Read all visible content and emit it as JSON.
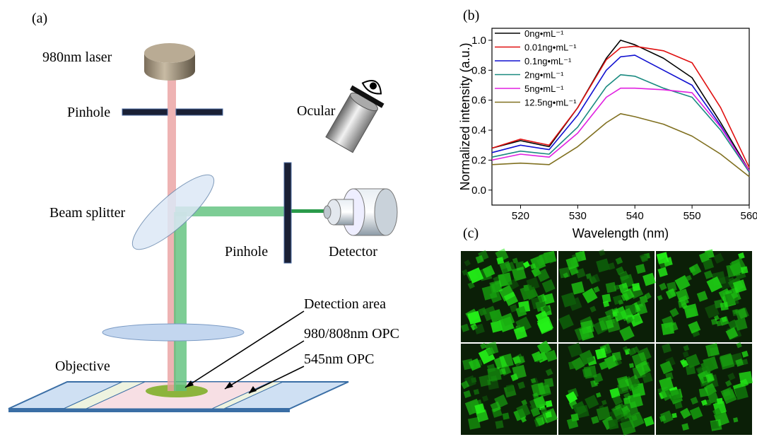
{
  "diagram": {
    "panel_label": "(a)",
    "laser": "980nm laser",
    "pinhole_top": "Pinhole",
    "ocular": "Ocular",
    "beam_splitter": "Beam splitter",
    "pinhole_side": "Pinhole",
    "detector": "Detector",
    "detection_area": "Detection area",
    "opc_980": "980/808nm OPC",
    "opc_545": "545nm OPC",
    "objective": "Objective"
  },
  "chart_data": {
    "type": "line",
    "panel_label": "(b)",
    "x_label": "Wavelength (nm)",
    "y_label": "Normalized intensity (a.u.)",
    "x": [
      515,
      520,
      525,
      530,
      535,
      537.5,
      540,
      545,
      550,
      555,
      560
    ],
    "xlim": [
      515,
      560
    ],
    "xticks": [
      520,
      530,
      540,
      550,
      560
    ],
    "ylim": [
      -0.1,
      1.08
    ],
    "yticks": [
      {
        "value": 0,
        "label": "0.0"
      },
      0.2,
      0.4,
      0.6,
      0.8,
      {
        "value": 1,
        "label": "1.0"
      }
    ],
    "legend": "upper left",
    "series": [
      {
        "name": "0ng•mL⁻¹",
        "color": "#000000",
        "values": [
          0.28,
          0.33,
          0.29,
          0.55,
          0.88,
          1.0,
          0.97,
          0.88,
          0.75,
          0.45,
          0.13
        ]
      },
      {
        "name": "0.01ng•mL⁻¹",
        "color": "#e01010",
        "values": [
          0.28,
          0.34,
          0.3,
          0.55,
          0.87,
          0.95,
          0.96,
          0.93,
          0.85,
          0.55,
          0.15
        ]
      },
      {
        "name": "0.1ng•mL⁻¹",
        "color": "#1010d0",
        "values": [
          0.25,
          0.3,
          0.27,
          0.5,
          0.8,
          0.89,
          0.9,
          0.8,
          0.7,
          0.43,
          0.12
        ]
      },
      {
        "name": "2ng•mL⁻¹",
        "color": "#1a8a80",
        "values": [
          0.22,
          0.26,
          0.24,
          0.42,
          0.69,
          0.77,
          0.76,
          0.68,
          0.62,
          0.4,
          0.12
        ]
      },
      {
        "name": "5ng•mL⁻¹",
        "color": "#e020e0",
        "values": [
          0.2,
          0.24,
          0.22,
          0.38,
          0.62,
          0.68,
          0.68,
          0.67,
          0.65,
          0.42,
          0.13
        ]
      },
      {
        "name": "12.5ng•mL⁻¹",
        "color": "#807020",
        "values": [
          0.17,
          0.18,
          0.17,
          0.29,
          0.45,
          0.51,
          0.49,
          0.44,
          0.36,
          0.24,
          0.09
        ]
      }
    ]
  },
  "micrographs": {
    "panel_label": "(c)"
  }
}
